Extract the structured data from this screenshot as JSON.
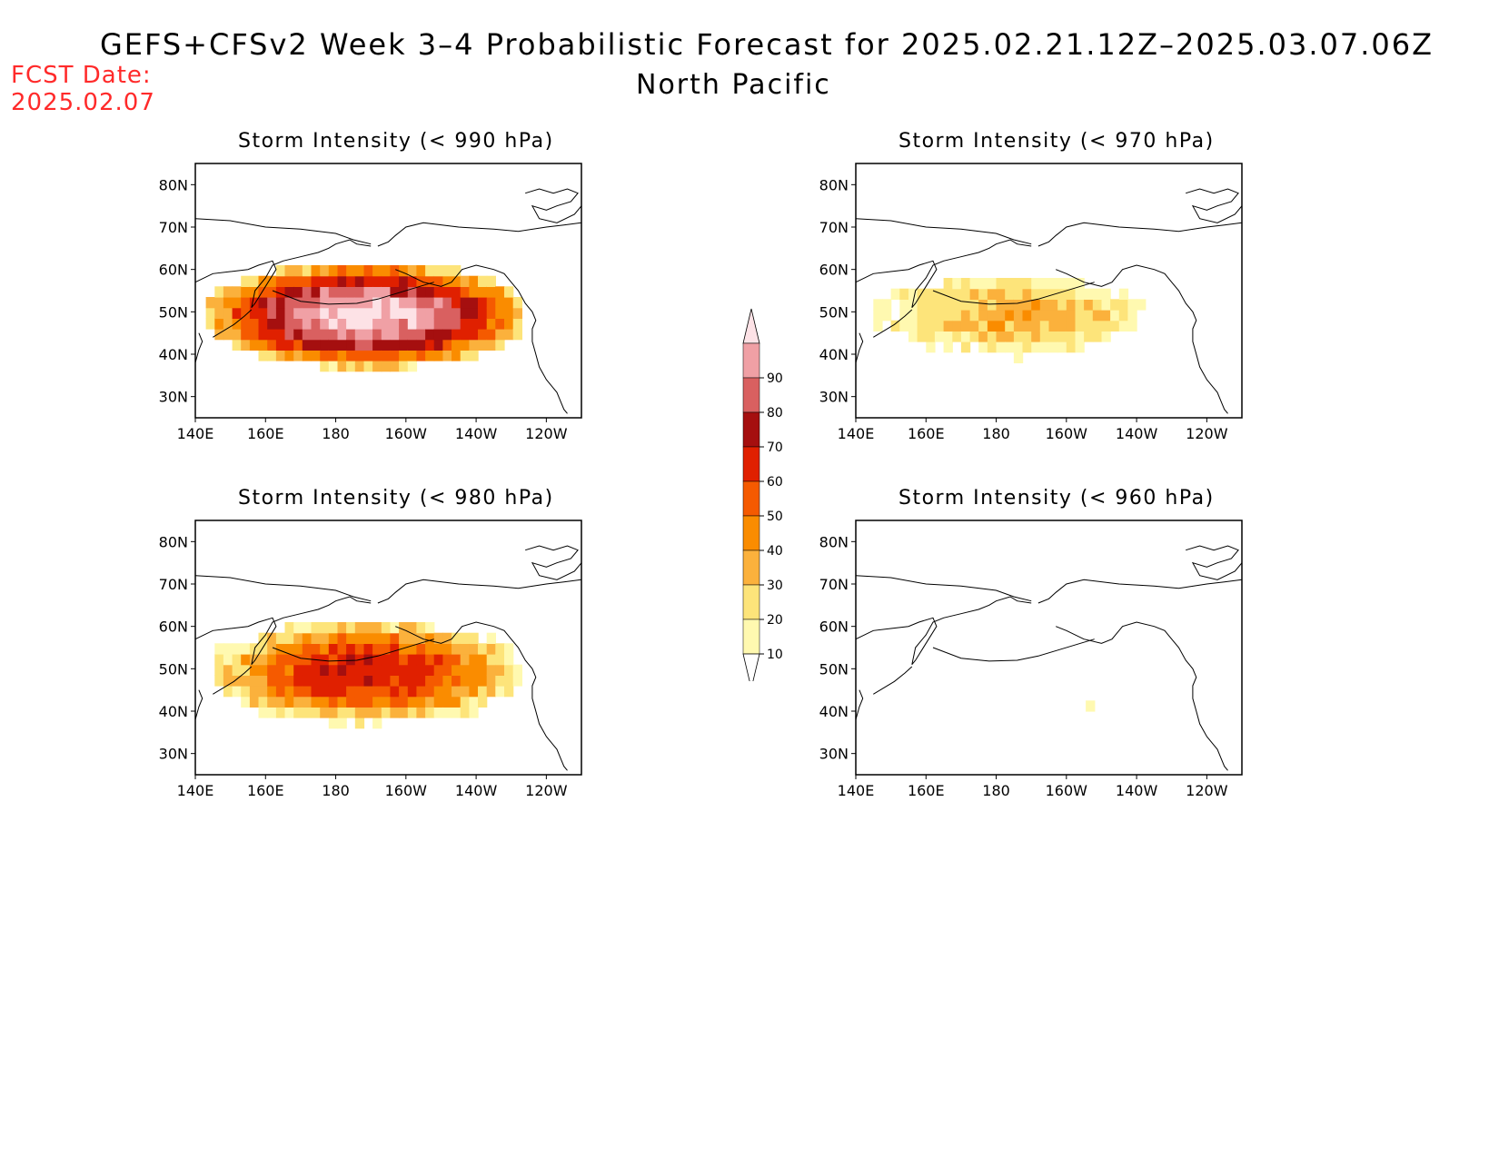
{
  "header": {
    "title": "GEFS+CFSv2 Week 3–4 Probabilistic Forecast for 2025.02.21.12Z–2025.03.07.06Z",
    "region": "North Pacific",
    "fcst_label": "FCST Date:",
    "fcst_date": "2025.02.07"
  },
  "axes": {
    "lat_ticks": [
      "80N",
      "70N",
      "60N",
      "50N",
      "40N",
      "30N"
    ],
    "lon_ticks": [
      "140E",
      "160E",
      "180",
      "160W",
      "140W",
      "120W"
    ]
  },
  "panels": [
    {
      "id": "p990",
      "title": "Storm Intensity (< 990 hPa)",
      "intensity": "high"
    },
    {
      "id": "p970",
      "title": "Storm Intensity (< 970 hPa)",
      "intensity": "low"
    },
    {
      "id": "p980",
      "title": "Storm Intensity (< 980 hPa)",
      "intensity": "medium"
    },
    {
      "id": "p960",
      "title": "Storm Intensity (< 960 hPa)",
      "intensity": "minimal"
    }
  ],
  "colorbar": {
    "labels": [
      "10",
      "20",
      "30",
      "40",
      "50",
      "60",
      "70",
      "80",
      "90"
    ],
    "colors": [
      "#fff9b0",
      "#fde47a",
      "#fbb13c",
      "#fa8c00",
      "#f55a00",
      "#e02000",
      "#a50f0f",
      "#d96060",
      "#f0a0a5",
      "#fde2e6"
    ]
  }
}
